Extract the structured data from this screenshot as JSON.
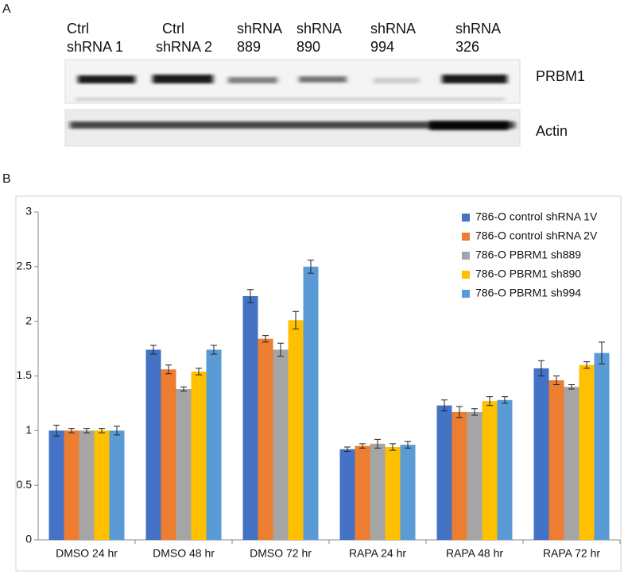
{
  "panel_a": {
    "label": "A",
    "lanes": [
      [
        "Ctrl",
        "shRNA 1"
      ],
      [
        "Ctrl",
        "shRNA 2"
      ],
      [
        "shRNA",
        "889"
      ],
      [
        "shRNA",
        "890"
      ],
      [
        "shRNA",
        "994"
      ],
      [
        "shRNA",
        "326"
      ]
    ],
    "blots": [
      "PRBM1",
      "Actin"
    ]
  },
  "panel_b_label": "B",
  "chart_data": {
    "type": "bar",
    "categories": [
      "DMSO 24 hr",
      "DMSO 48 hr",
      "DMSO 72 hr",
      "RAPA 24 hr",
      "RAPA 48 hr",
      "RAPA 72 hr"
    ],
    "series": [
      {
        "name": "786-O control shRNA 1V",
        "color": "#4472c4",
        "values": [
          1.0,
          1.74,
          2.23,
          0.83,
          1.23,
          1.57
        ],
        "errors": [
          0.05,
          0.04,
          0.06,
          0.02,
          0.05,
          0.07
        ]
      },
      {
        "name": "786-O control shRNA 2V",
        "color": "#ed7d31",
        "values": [
          1.0,
          1.56,
          1.84,
          0.86,
          1.17,
          1.46
        ],
        "errors": [
          0.02,
          0.04,
          0.03,
          0.02,
          0.05,
          0.04
        ]
      },
      {
        "name": "786-O PBRM1 sh889",
        "color": "#a5a5a5",
        "values": [
          1.0,
          1.38,
          1.74,
          0.88,
          1.17,
          1.4
        ],
        "errors": [
          0.02,
          0.02,
          0.06,
          0.04,
          0.03,
          0.02
        ]
      },
      {
        "name": "786-O PBRM1 sh890",
        "color": "#ffc000",
        "values": [
          1.0,
          1.54,
          2.01,
          0.85,
          1.27,
          1.6
        ],
        "errors": [
          0.02,
          0.03,
          0.08,
          0.03,
          0.04,
          0.03
        ]
      },
      {
        "name": "786-O PBRM1 sh994",
        "color": "#5b9bd5",
        "values": [
          1.0,
          1.74,
          2.5,
          0.87,
          1.28,
          1.71
        ],
        "errors": [
          0.04,
          0.04,
          0.06,
          0.03,
          0.03,
          0.1
        ]
      }
    ],
    "ylim": [
      0,
      3
    ],
    "yticks": [
      0,
      0.5,
      1,
      1.5,
      2,
      2.5,
      3
    ],
    "grid": false,
    "legend": "top-right"
  }
}
